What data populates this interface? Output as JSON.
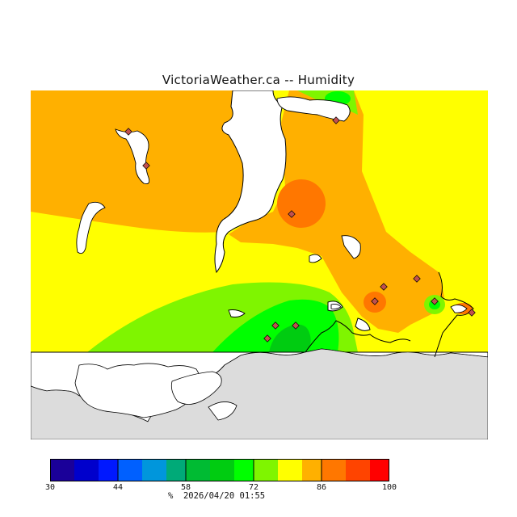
{
  "title": "VictoriaWeather.ca -- Humidity",
  "legend": {
    "unit": "%",
    "timestamp": "2026/04/20 01:55",
    "min": 30,
    "max": 100,
    "ticks": [
      "30",
      "44",
      "58",
      "72",
      "86",
      "100"
    ],
    "bins": [
      {
        "lo": 30,
        "color": "#1a0099"
      },
      {
        "lo": 35,
        "color": "#0000cc"
      },
      {
        "lo": 40,
        "color": "#0018ff"
      },
      {
        "lo": 44,
        "color": "#0060ff"
      },
      {
        "lo": 49,
        "color": "#0096dc"
      },
      {
        "lo": 54,
        "color": "#00aa78"
      },
      {
        "lo": 58,
        "color": "#00bb33"
      },
      {
        "lo": 63,
        "color": "#00cc11"
      },
      {
        "lo": 68,
        "color": "#00ff00"
      },
      {
        "lo": 72,
        "color": "#7ff500"
      },
      {
        "lo": 77,
        "color": "#ffff00"
      },
      {
        "lo": 82,
        "color": "#ffb000"
      },
      {
        "lo": 86,
        "color": "#ff7700"
      },
      {
        "lo": 91,
        "color": "#ff4400"
      },
      {
        "lo": 96,
        "color": "#ff0000"
      }
    ]
  },
  "colors": {
    "land_no_data": "#dcdcdc",
    "water": "#ffffff",
    "coastline": "#000000",
    "station": "#c05050"
  },
  "stations_count_note": "",
  "map": {
    "region": "Victoria, BC area",
    "field": "relative humidity"
  }
}
